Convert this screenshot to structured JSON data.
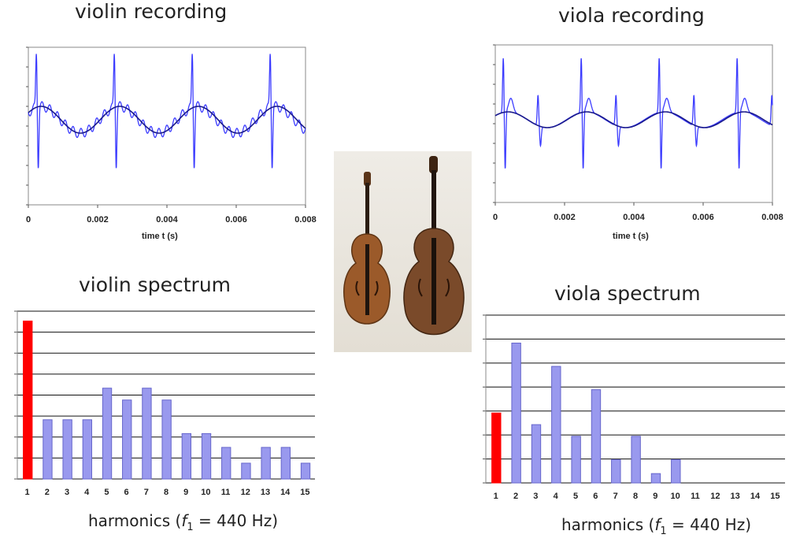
{
  "panels": {
    "violin_recording": {
      "title": "violin  recording",
      "xlabel": "time t (s)"
    },
    "viola_recording": {
      "title": "viola  recording",
      "xlabel": "time t (s)"
    },
    "violin_spectrum": {
      "title": "violin  spectrum"
    },
    "viola_spectrum": {
      "title": "viola  spectrum"
    }
  },
  "colors": {
    "wave": "#3c3cff",
    "fundamental": "#1a1a8c",
    "bar": "#9999ee",
    "bar_edge": "#6666cc",
    "first_bar": "#ff0000"
  },
  "chart_data": [
    {
      "id": "violin_recording",
      "type": "line",
      "title": "violin  recording",
      "xlabel": "time t (s)",
      "x_ticks": [
        "0",
        "0.002",
        "0.004",
        "0.006",
        "0.008"
      ],
      "xlim": [
        0,
        0.008
      ],
      "series": [
        {
          "style": "waveform",
          "period": 0.00225,
          "color": "#3c3cff"
        },
        {
          "style": "fundamental",
          "period": 0.00227,
          "color": "#1a1a8c"
        }
      ]
    },
    {
      "id": "viola_recording",
      "type": "line",
      "title": "viola  recording",
      "xlabel": "time t (s)",
      "x_ticks": [
        "0",
        "0.002",
        "0.004",
        "0.006",
        "0.008"
      ],
      "xlim": [
        0,
        0.008
      ],
      "series": [
        {
          "style": "waveform",
          "period": 0.00225,
          "color": "#3c3cff"
        },
        {
          "style": "fundamental",
          "period": 0.00227,
          "color": "#1a1a8c"
        }
      ]
    },
    {
      "id": "violin_spectrum",
      "type": "bar",
      "title": "violin  spectrum",
      "xlabel": "harmonics (f1 = 440 Hz)",
      "xlabel_parts": {
        "pre": "harmonics (",
        "f": "f",
        "sub": "1",
        "post": " = 440 Hz)"
      },
      "categories": [
        "1",
        "2",
        "3",
        "4",
        "5",
        "6",
        "7",
        "8",
        "9",
        "10",
        "11",
        "12",
        "13",
        "14",
        "15"
      ],
      "values": [
        8,
        3,
        3,
        3,
        4.6,
        4,
        4.6,
        4,
        2.3,
        2.3,
        1.6,
        0.8,
        1.6,
        1.6,
        0.8
      ],
      "ylim": [
        0,
        8.5
      ],
      "grid_lines": 8
    },
    {
      "id": "viola_spectrum",
      "type": "bar",
      "title": "viola  spectrum",
      "xlabel": "harmonics (f1 = 440 Hz)",
      "xlabel_parts": {
        "pre": "harmonics (",
        "f": "f",
        "sub": "1",
        "post": " = 440 Hz)"
      },
      "categories": [
        "1",
        "2",
        "3",
        "4",
        "5",
        "6",
        "7",
        "8",
        "9",
        "10",
        "11",
        "12",
        "13",
        "14",
        "15"
      ],
      "values": [
        3,
        6,
        2.5,
        5,
        2,
        4,
        1,
        2,
        0.4,
        1,
        0,
        0,
        0,
        0,
        0
      ],
      "ylim": [
        0,
        7.2
      ],
      "grid_lines": 7
    }
  ]
}
